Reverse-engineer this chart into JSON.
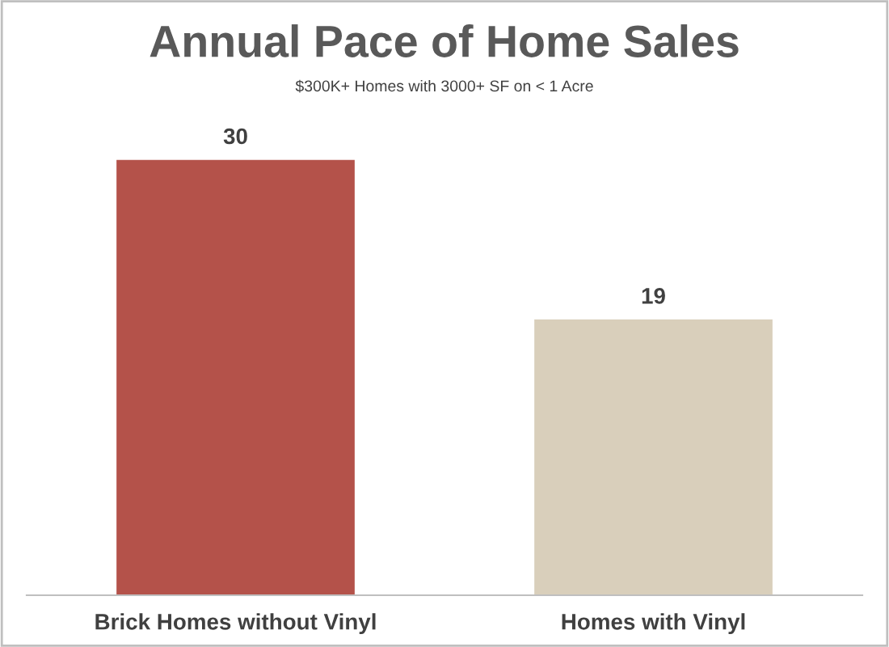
{
  "chart_data": {
    "type": "bar",
    "title": "Annual Pace of Home Sales",
    "subtitle": "$300K+ Homes with 3000+ SF on < 1 Acre",
    "categories": [
      "Brick Homes without Vinyl",
      "Homes with Vinyl"
    ],
    "values": [
      30,
      19
    ],
    "colors": [
      "#b4524a",
      "#d9cfbb"
    ],
    "data_labels": true,
    "grid": false,
    "legend": false
  }
}
